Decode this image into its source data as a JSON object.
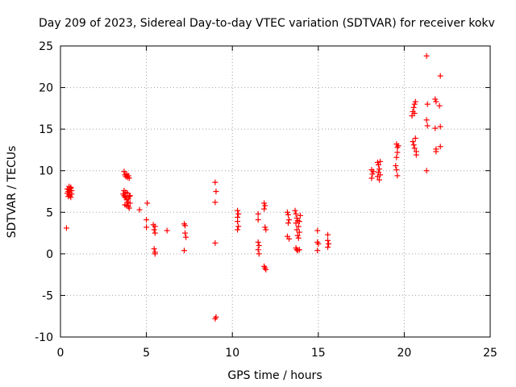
{
  "chart_data": {
    "type": "scatter",
    "title": "Day 209 of 2023, Sidereal Day-to-day VTEC variation (SDTVAR) for receiver kokv",
    "xlabel": "GPS time / hours",
    "ylabel": "SDTVAR / TECUs",
    "xlim": [
      0,
      25
    ],
    "ylim": [
      -10,
      25
    ],
    "x_ticks": [
      0,
      5,
      10,
      15,
      20,
      25
    ],
    "y_ticks": [
      -10,
      -5,
      0,
      5,
      10,
      15,
      20,
      25
    ],
    "grid": true,
    "legend": "none",
    "marker": "+",
    "color": "#ff0000",
    "series": [
      {
        "name": "SDTVAR",
        "points": [
          [
            0.35,
            3.1
          ],
          [
            0.4,
            7.8
          ],
          [
            0.4,
            7.3
          ],
          [
            0.45,
            6.9
          ],
          [
            0.45,
            7.5
          ],
          [
            0.5,
            7.7
          ],
          [
            0.5,
            8.1
          ],
          [
            0.55,
            7.0
          ],
          [
            0.55,
            7.4
          ],
          [
            0.6,
            7.9
          ],
          [
            0.6,
            6.8
          ],
          [
            0.65,
            7.2
          ],
          [
            0.65,
            7.6
          ],
          [
            0.6,
            8.0
          ],
          [
            0.5,
            7.1
          ],
          [
            3.7,
            9.9
          ],
          [
            3.75,
            9.5
          ],
          [
            3.8,
            9.3
          ],
          [
            3.85,
            9.6
          ],
          [
            3.9,
            9.2
          ],
          [
            3.95,
            9.4
          ],
          [
            4.0,
            9.1
          ],
          [
            3.65,
            7.2
          ],
          [
            3.7,
            7.0
          ],
          [
            3.75,
            6.8
          ],
          [
            3.8,
            7.4
          ],
          [
            3.85,
            6.5
          ],
          [
            3.9,
            6.2
          ],
          [
            3.75,
            5.9
          ],
          [
            3.8,
            6.9
          ],
          [
            3.95,
            5.7
          ],
          [
            4.0,
            5.5
          ],
          [
            3.85,
            5.8
          ],
          [
            3.9,
            7.3
          ],
          [
            4.0,
            6.9
          ],
          [
            4.05,
            6.1
          ],
          [
            3.7,
            7.6
          ],
          [
            4.05,
            7.0
          ],
          [
            3.95,
            6.6
          ],
          [
            4.6,
            5.3
          ],
          [
            5.0,
            4.1
          ],
          [
            5.0,
            3.2
          ],
          [
            5.05,
            6.1
          ],
          [
            5.4,
            3.5
          ],
          [
            5.45,
            2.9
          ],
          [
            5.5,
            3.3
          ],
          [
            5.5,
            2.5
          ],
          [
            5.45,
            0.6
          ],
          [
            5.5,
            0.2
          ],
          [
            5.5,
            0.0
          ],
          [
            6.2,
            2.8
          ],
          [
            7.2,
            3.6
          ],
          [
            7.25,
            3.4
          ],
          [
            7.25,
            2.5
          ],
          [
            7.3,
            2.0
          ],
          [
            7.2,
            0.4
          ],
          [
            9.0,
            8.6
          ],
          [
            9.05,
            7.5
          ],
          [
            9.0,
            6.2
          ],
          [
            9.0,
            1.3
          ],
          [
            9.0,
            -7.8
          ],
          [
            9.05,
            -7.6
          ],
          [
            10.3,
            5.2
          ],
          [
            10.35,
            4.8
          ],
          [
            10.3,
            4.4
          ],
          [
            10.3,
            3.9
          ],
          [
            10.35,
            3.3
          ],
          [
            10.3,
            2.9
          ],
          [
            11.5,
            4.8
          ],
          [
            11.5,
            4.1
          ],
          [
            11.5,
            1.4
          ],
          [
            11.55,
            1.0
          ],
          [
            11.5,
            0.5
          ],
          [
            11.55,
            0.0
          ],
          [
            11.85,
            6.1
          ],
          [
            11.9,
            5.8
          ],
          [
            11.85,
            5.4
          ],
          [
            11.9,
            3.2
          ],
          [
            11.95,
            2.9
          ],
          [
            11.85,
            -1.5
          ],
          [
            11.9,
            -1.7
          ],
          [
            11.95,
            -1.9
          ],
          [
            13.2,
            5.0
          ],
          [
            13.25,
            4.7
          ],
          [
            13.3,
            4.1
          ],
          [
            13.25,
            3.7
          ],
          [
            13.2,
            2.1
          ],
          [
            13.3,
            1.8
          ],
          [
            13.65,
            5.2
          ],
          [
            13.7,
            4.8
          ],
          [
            13.75,
            4.3
          ],
          [
            13.8,
            4.0
          ],
          [
            13.7,
            3.7
          ],
          [
            13.85,
            3.3
          ],
          [
            13.75,
            2.9
          ],
          [
            13.9,
            2.6
          ],
          [
            13.8,
            2.2
          ],
          [
            13.85,
            1.9
          ],
          [
            13.7,
            0.7
          ],
          [
            13.75,
            0.5
          ],
          [
            13.8,
            0.4
          ],
          [
            13.9,
            0.5
          ],
          [
            13.95,
            4.6
          ],
          [
            13.9,
            3.9
          ],
          [
            14.95,
            2.8
          ],
          [
            14.95,
            1.4
          ],
          [
            15.0,
            1.2
          ],
          [
            14.95,
            0.4
          ],
          [
            15.55,
            2.3
          ],
          [
            15.55,
            1.6
          ],
          [
            15.6,
            1.2
          ],
          [
            15.55,
            0.8
          ],
          [
            18.1,
            10.1
          ],
          [
            18.15,
            9.6
          ],
          [
            18.1,
            9.1
          ],
          [
            18.2,
            9.9
          ],
          [
            18.45,
            11.0
          ],
          [
            18.5,
            10.7
          ],
          [
            18.55,
            10.2
          ],
          [
            18.5,
            9.8
          ],
          [
            18.45,
            9.3
          ],
          [
            18.55,
            8.9
          ],
          [
            18.6,
            11.1
          ],
          [
            18.6,
            9.5
          ],
          [
            19.55,
            13.2
          ],
          [
            19.6,
            12.8
          ],
          [
            19.6,
            12.2
          ],
          [
            19.55,
            11.6
          ],
          [
            19.5,
            10.6
          ],
          [
            19.55,
            10.1
          ],
          [
            19.6,
            9.4
          ],
          [
            19.65,
            13.0
          ],
          [
            20.45,
            16.6
          ],
          [
            20.5,
            17.1
          ],
          [
            20.55,
            17.6
          ],
          [
            20.6,
            18.0
          ],
          [
            20.65,
            18.3
          ],
          [
            20.6,
            16.9
          ],
          [
            20.5,
            13.5
          ],
          [
            20.55,
            13.1
          ],
          [
            20.6,
            12.7
          ],
          [
            20.7,
            12.3
          ],
          [
            20.65,
            13.9
          ],
          [
            20.7,
            11.9
          ],
          [
            21.3,
            23.8
          ],
          [
            21.35,
            18.0
          ],
          [
            21.3,
            16.1
          ],
          [
            21.35,
            15.4
          ],
          [
            21.3,
            10.0
          ],
          [
            21.8,
            18.6
          ],
          [
            21.85,
            18.3
          ],
          [
            21.8,
            15.1
          ],
          [
            21.85,
            12.3
          ],
          [
            21.85,
            12.6
          ],
          [
            22.1,
            21.4
          ],
          [
            22.05,
            17.8
          ],
          [
            22.1,
            15.3
          ],
          [
            22.1,
            12.9
          ]
        ]
      }
    ]
  }
}
